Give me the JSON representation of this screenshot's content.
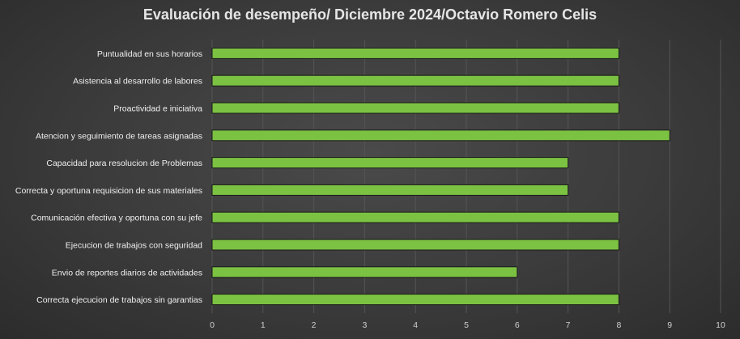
{
  "chart_data": {
    "type": "bar",
    "orientation": "horizontal",
    "title": "Evaluación de desempeño/ Diciembre 2024/Octavio Romero Celis",
    "categories": [
      "Puntualidad en sus horarios",
      "Asistencia al desarrollo de labores",
      "Proactividad e iniciativa",
      "Atencion y seguimiento de tareas asignadas",
      "Capacidad para resolucion de Problemas",
      "Correcta y oportuna requisicion de sus materiales",
      "Comunicación  efectiva y oportuna con su jefe",
      "Ejecucion de trabajos con seguridad",
      "Envio de reportes diarios de actividades",
      "Correcta ejecucion de trabajos sin garantias"
    ],
    "values": [
      8,
      8,
      8,
      9,
      7,
      7,
      8,
      8,
      6,
      8
    ],
    "xlim": [
      0,
      10
    ],
    "xticks": [
      "0",
      "1",
      "2",
      "3",
      "4",
      "5",
      "6",
      "7",
      "8",
      "9",
      "10"
    ],
    "grid": "vertical",
    "legend": "none",
    "bar_color": "#7cc242",
    "bar_edge_color": "#1a1a1a",
    "grid_color": "#555555"
  }
}
